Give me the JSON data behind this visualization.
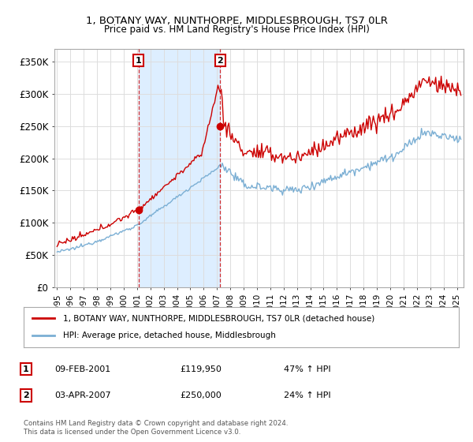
{
  "title": "1, BOTANY WAY, NUNTHORPE, MIDDLESBROUGH, TS7 0LR",
  "subtitle": "Price paid vs. HM Land Registry's House Price Index (HPI)",
  "ylim": [
    0,
    370000
  ],
  "yticks": [
    0,
    50000,
    100000,
    150000,
    200000,
    250000,
    300000,
    350000
  ],
  "ytick_labels": [
    "£0",
    "£50K",
    "£100K",
    "£150K",
    "£200K",
    "£250K",
    "£300K",
    "£350K"
  ],
  "xlim_start": 1994.8,
  "xlim_end": 2025.5,
  "sale1_date": 2001.1,
  "sale1_price": 119950,
  "sale1_label": "1",
  "sale2_date": 2007.25,
  "sale2_price": 250000,
  "sale2_label": "2",
  "legend_line1": "1, BOTANY WAY, NUNTHORPE, MIDDLESBROUGH, TS7 0LR (detached house)",
  "legend_line2": "HPI: Average price, detached house, Middlesbrough",
  "table_row1_num": "1",
  "table_row1_date": "09-FEB-2001",
  "table_row1_price": "£119,950",
  "table_row1_hpi": "47% ↑ HPI",
  "table_row2_num": "2",
  "table_row2_date": "03-APR-2007",
  "table_row2_price": "£250,000",
  "table_row2_hpi": "24% ↑ HPI",
  "footer": "Contains HM Land Registry data © Crown copyright and database right 2024.\nThis data is licensed under the Open Government Licence v3.0.",
  "property_color": "#cc0000",
  "hpi_color": "#7bafd4",
  "shade_color": "#ddeeff",
  "vline_color": "#cc0000",
  "background_color": "#ffffff",
  "grid_color": "#dddddd"
}
